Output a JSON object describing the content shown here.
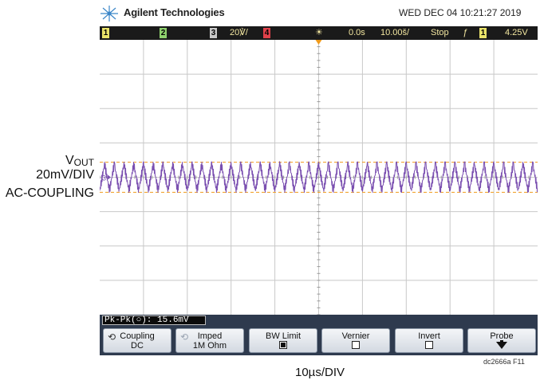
{
  "header": {
    "brand": "Agilent Technologies",
    "datetime": "WED DEC 04 10:21:27 2019"
  },
  "status_bar": {
    "ch1": "1",
    "ch2": "2",
    "ch3": "3",
    "ch3_scale": "20℣/",
    "ch4": "4",
    "delay": "0.0s",
    "timebase": "10.00š/",
    "run_state": "Stop",
    "trigger_channel": "1",
    "trigger_level": "4.25V"
  },
  "labels": {
    "vout": "V",
    "vout_sub": "OUT",
    "vdiv": "20mV/DIV",
    "coupling": "AC-COUPLING",
    "trace_marker": "3",
    "time_div": "10µs/DIV",
    "figure_id": "dc2666a F11"
  },
  "measurement": {
    "text": "Pk-Pk(○): 15.6mV"
  },
  "softkeys": [
    {
      "line1": "Coupling",
      "line2": "DC",
      "kind": "rotary"
    },
    {
      "line1": "Imped",
      "line2": "1M Ohm",
      "kind": "rotary-dim"
    },
    {
      "line1": "BW Limit",
      "line2": "",
      "kind": "checkbox",
      "checked": true
    },
    {
      "line1": "Vernier",
      "line2": "",
      "kind": "checkbox",
      "checked": false
    },
    {
      "line1": "Invert",
      "line2": "",
      "kind": "checkbox",
      "checked": false
    },
    {
      "line1": "Probe",
      "line2": "",
      "kind": "arrow"
    }
  ],
  "colors": {
    "trace": "#7a4fb0",
    "grid": "#c8c8c8",
    "trigger_marker": "#f09a1a",
    "status_bg": "#1a1a1a",
    "ch1_badge": "#e9e36a",
    "ch2_badge": "#8fd16e",
    "ch3_badge": "#c9c9c9",
    "ch4_badge": "#e0414a"
  },
  "chart_data": {
    "type": "line",
    "title": "",
    "xlabel": "10µs/DIV",
    "ylabel": "20mV/DIV",
    "x_divisions": 10,
    "y_divisions": 8,
    "x_range_us": [
      0,
      100
    ],
    "series": [
      {
        "cycles": 45,
        "peak_to_peak_mV": 15.6,
        "offset_div": 0,
        "waveform": "triangle-ripple-with-switching-spikes"
      }
    ]
  }
}
